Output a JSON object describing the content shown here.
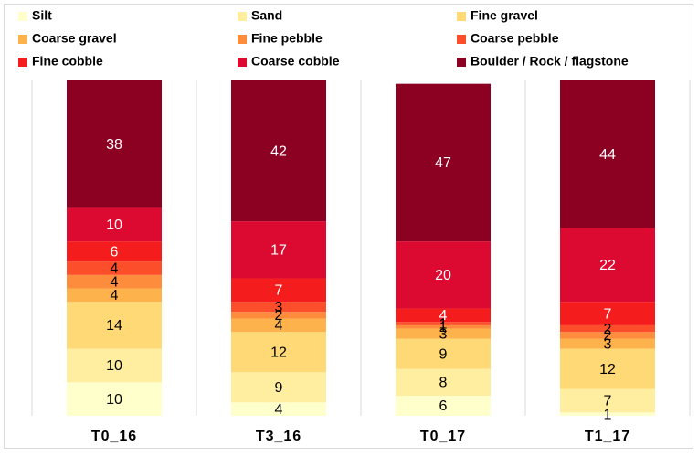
{
  "chart_data": {
    "type": "stacked_bar",
    "categories": [
      "T0_16",
      "T3_16",
      "T0_17",
      "T1_17"
    ],
    "series": [
      {
        "name": "Silt",
        "color": "#ffffcc",
        "label_color": "#000000",
        "values": [
          10,
          4,
          6,
          1
        ]
      },
      {
        "name": "Sand",
        "color": "#ffeda0",
        "label_color": "#000000",
        "values": [
          10,
          9,
          8,
          7
        ]
      },
      {
        "name": "Fine gravel",
        "color": "#fed976",
        "label_color": "#000000",
        "values": [
          14,
          12,
          9,
          12
        ]
      },
      {
        "name": "Coarse gravel",
        "color": "#feb24c",
        "label_color": "#000000",
        "values": [
          4,
          4,
          3,
          3
        ]
      },
      {
        "name": "Fine pebble",
        "color": "#fd8d3c",
        "label_color": "#000000",
        "values": [
          4,
          2,
          1,
          2
        ]
      },
      {
        "name": "Coarse pebble",
        "color": "#fc4e2a",
        "label_color": "#000000",
        "values": [
          4,
          3,
          1,
          2
        ]
      },
      {
        "name": "Fine cobble",
        "color": "#f41c1c",
        "label_color": "#ffffff",
        "values": [
          6,
          7,
          4,
          7
        ]
      },
      {
        "name": "Coarse cobble",
        "color": "#dc0a30",
        "label_color": "#ffffff",
        "values": [
          10,
          17,
          20,
          22
        ]
      },
      {
        "name": "Boulder / Rock / flagstone",
        "color": "#8c0022",
        "label_color": "#ffffff",
        "values": [
          38,
          42,
          47,
          44
        ]
      }
    ],
    "ylim": [
      0,
      100
    ]
  }
}
